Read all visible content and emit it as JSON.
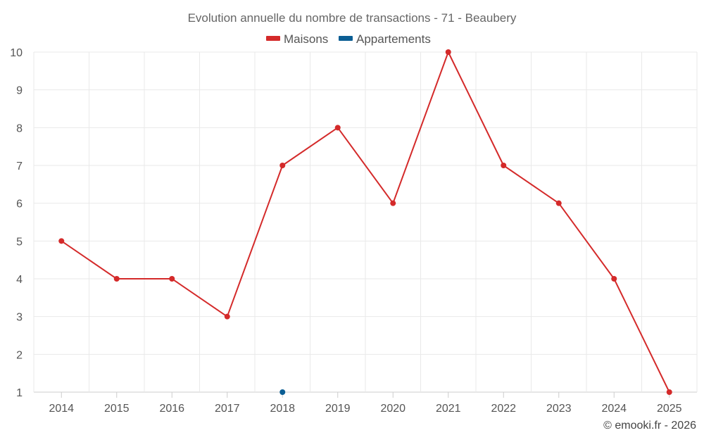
{
  "chart_data": {
    "type": "line",
    "title": "Evolution annuelle du nombre de transactions - 71 - Beaubery",
    "categories": [
      "2014",
      "2015",
      "2016",
      "2017",
      "2018",
      "2019",
      "2020",
      "2021",
      "2022",
      "2023",
      "2024",
      "2025"
    ],
    "series": [
      {
        "name": "Maisons",
        "color": "#d42a2a",
        "values": [
          5,
          4,
          4,
          3,
          7,
          8,
          6,
          10,
          7,
          6,
          4,
          1
        ]
      },
      {
        "name": "Appartements",
        "color": "#0b5e94",
        "values": [
          null,
          null,
          null,
          null,
          1,
          null,
          null,
          null,
          null,
          null,
          null,
          null
        ]
      }
    ],
    "ylim": [
      1,
      10
    ],
    "yticks": [
      1,
      2,
      3,
      4,
      5,
      6,
      7,
      8,
      9,
      10
    ],
    "xlabel": "",
    "ylabel": "",
    "grid": true,
    "legend_position": "top-center"
  },
  "credit": "© emooki.fr - 2026"
}
